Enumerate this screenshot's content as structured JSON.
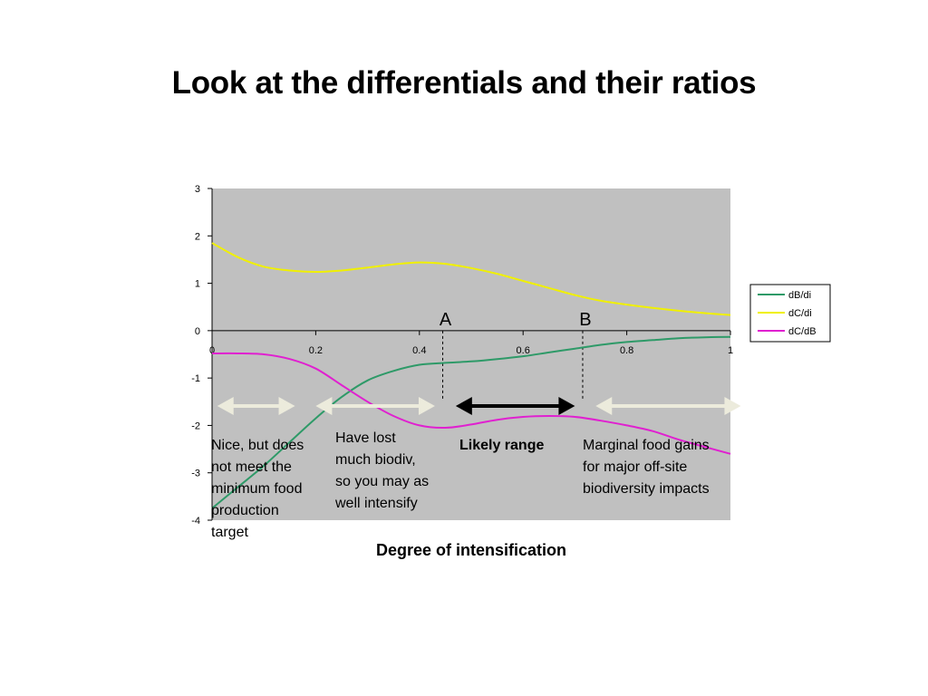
{
  "slide": {
    "title": "Look at the differentials and their ratios"
  },
  "chart_data": {
    "type": "line",
    "xlabel": "Degree of intensification",
    "ylabel": "",
    "xlim": [
      0,
      1
    ],
    "ylim": [
      -4,
      3
    ],
    "x_ticks": [
      "0",
      "0.2",
      "0.4",
      "0.6",
      "0.8",
      "1"
    ],
    "y_ticks": [
      "3",
      "2",
      "1",
      "0",
      "-1",
      "-2",
      "-3",
      "-4"
    ],
    "grid": false,
    "legend_position": "right",
    "series": [
      {
        "name": "dB/di",
        "color": "#2e9a68",
        "x": [
          0,
          0.05,
          0.1,
          0.15,
          0.2,
          0.25,
          0.3,
          0.35,
          0.4,
          0.45,
          0.5,
          0.55,
          0.6,
          0.65,
          0.7,
          0.75,
          0.8,
          0.85,
          0.9,
          0.95,
          1.0
        ],
        "y": [
          -3.75,
          -3.3,
          -2.85,
          -2.35,
          -1.85,
          -1.4,
          -1.05,
          -0.85,
          -0.72,
          -0.68,
          -0.65,
          -0.6,
          -0.54,
          -0.46,
          -0.38,
          -0.3,
          -0.24,
          -0.2,
          -0.16,
          -0.14,
          -0.13
        ]
      },
      {
        "name": "dC/di",
        "color": "#f0f000",
        "x": [
          0,
          0.05,
          0.1,
          0.15,
          0.2,
          0.25,
          0.3,
          0.35,
          0.4,
          0.45,
          0.5,
          0.55,
          0.6,
          0.65,
          0.7,
          0.75,
          0.8,
          0.85,
          0.9,
          0.95,
          1.0
        ],
        "y": [
          1.85,
          1.55,
          1.35,
          1.27,
          1.24,
          1.27,
          1.33,
          1.4,
          1.44,
          1.41,
          1.32,
          1.2,
          1.05,
          0.9,
          0.75,
          0.63,
          0.55,
          0.48,
          0.42,
          0.37,
          0.33
        ]
      },
      {
        "name": "dC/dB",
        "color": "#e020d0",
        "x": [
          0,
          0.05,
          0.1,
          0.15,
          0.2,
          0.25,
          0.3,
          0.35,
          0.4,
          0.45,
          0.5,
          0.55,
          0.6,
          0.65,
          0.7,
          0.75,
          0.8,
          0.85,
          0.9,
          0.95,
          1.0
        ],
        "y": [
          -0.48,
          -0.48,
          -0.5,
          -0.6,
          -0.8,
          -1.15,
          -1.5,
          -1.8,
          -2.0,
          -2.05,
          -1.98,
          -1.88,
          -1.82,
          -1.8,
          -1.82,
          -1.9,
          -2.0,
          -2.12,
          -2.3,
          -2.45,
          -2.6
        ]
      }
    ],
    "annotations": [
      {
        "id": "A",
        "label": "A",
        "x": 0.445
      },
      {
        "id": "B",
        "label": "B",
        "x": 0.715
      }
    ],
    "ranges": [
      {
        "id": "r1",
        "x0": 0.01,
        "x1": 0.16,
        "color": "#ecebdc",
        "text": "Nice, but does\nnot meet the\nminimum food\nproduction\ntarget",
        "bold": false
      },
      {
        "id": "r2",
        "x0": 0.2,
        "x1": 0.43,
        "color": "#ecebdc",
        "text": "Have lost\nmuch biodiv,\nso you may as\nwell intensify",
        "bold": false
      },
      {
        "id": "r3",
        "x0": 0.47,
        "x1": 0.7,
        "color": "#000000",
        "text": "Likely range",
        "bold": true
      },
      {
        "id": "r4",
        "x0": 0.74,
        "x1": 1.02,
        "color": "#ecebdc",
        "text": "Marginal food gains\nfor major off-site\nbiodiversity impacts",
        "bold": false
      }
    ]
  }
}
